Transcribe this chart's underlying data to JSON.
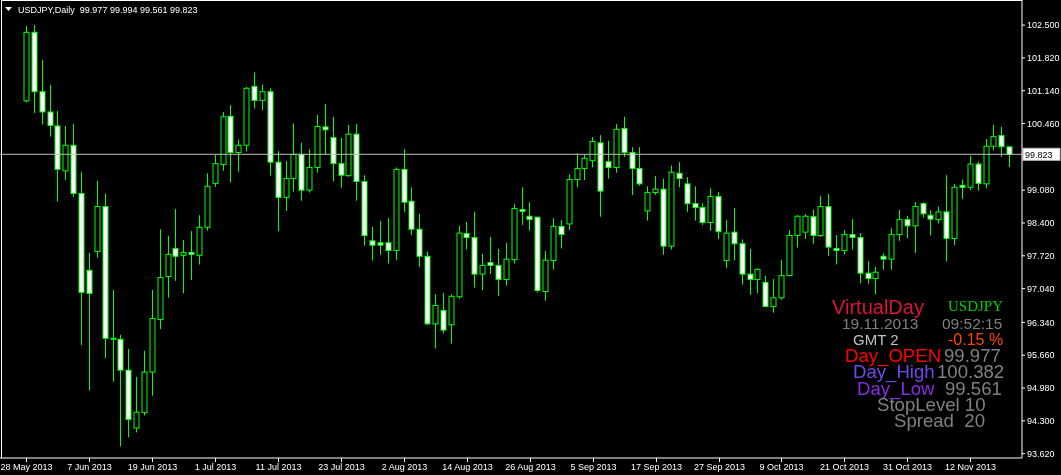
{
  "chart_data": {
    "type": "candlestick",
    "title": "USDJPY,Daily  99.977 99.994 99.561 99.823",
    "categories": [
      "28 May 2013",
      null,
      null,
      null,
      null,
      null,
      null,
      null,
      "7 Jun 2013",
      null,
      null,
      null,
      null,
      null,
      null,
      null,
      "19 Jun 2013",
      null,
      null,
      null,
      null,
      null,
      null,
      null,
      "1 Jul 2013",
      null,
      null,
      null,
      null,
      null,
      null,
      null,
      "11 Jul 2013",
      null,
      null,
      null,
      null,
      null,
      null,
      null,
      "23 Jul 2013",
      null,
      null,
      null,
      null,
      null,
      null,
      null,
      "2 Aug 2013",
      null,
      null,
      null,
      null,
      null,
      null,
      null,
      "14 Aug 2013",
      null,
      null,
      null,
      null,
      null,
      null,
      null,
      "26 Aug 2013",
      null,
      null,
      null,
      null,
      null,
      null,
      null,
      "5 Sep 2013",
      null,
      null,
      null,
      null,
      null,
      null,
      null,
      "17 Sep 2013",
      null,
      null,
      null,
      null,
      null,
      null,
      null,
      "27 Sep 2013",
      null,
      null,
      null,
      null,
      null,
      null,
      null,
      "9 Oct 2013",
      null,
      null,
      null,
      null,
      null,
      null,
      null,
      "21 Oct 2013",
      null,
      null,
      null,
      null,
      null,
      null,
      null,
      "31 Oct 2013",
      null,
      null,
      null,
      null,
      null,
      null,
      null,
      "12 Nov 2013",
      null,
      null,
      null,
      null,
      null
    ],
    "ohlc": [
      [
        100.93,
        102.48,
        100.9,
        102.35
      ],
      [
        102.35,
        102.5,
        100.68,
        101.12
      ],
      [
        101.12,
        101.78,
        100.44,
        100.7
      ],
      [
        100.7,
        101.26,
        100.19,
        100.42
      ],
      [
        100.41,
        100.72,
        98.84,
        99.51
      ],
      [
        99.48,
        100.41,
        99.29,
        100.01
      ],
      [
        100.01,
        100.45,
        98.94,
        99.01
      ],
      [
        99.01,
        99.46,
        95.87,
        96.96
      ],
      [
        97.42,
        97.78,
        94.93,
        96.94
      ],
      [
        97.81,
        99.27,
        97.68,
        98.74
      ],
      [
        98.74,
        99.01,
        95.6,
        96.01
      ],
      [
        96.0,
        97.01,
        95.11,
        96.01
      ],
      [
        95.99,
        96.08,
        93.77,
        95.35
      ],
      [
        95.35,
        95.79,
        93.96,
        94.33
      ],
      [
        94.15,
        95.21,
        94.06,
        94.48
      ],
      [
        94.47,
        95.75,
        94.41,
        95.31
      ],
      [
        95.31,
        97.01,
        94.82,
        96.42
      ],
      [
        96.4,
        98.27,
        96.2,
        97.27
      ],
      [
        97.29,
        98.13,
        96.85,
        97.75
      ],
      [
        97.87,
        98.69,
        97.2,
        97.71
      ],
      [
        97.73,
        98.05,
        96.94,
        97.79
      ],
      [
        97.79,
        98.23,
        97.22,
        97.75
      ],
      [
        97.73,
        98.56,
        97.54,
        98.31
      ],
      [
        98.31,
        99.43,
        98.24,
        99.16
      ],
      [
        99.22,
        99.81,
        99.15,
        99.63
      ],
      [
        99.61,
        100.7,
        99.48,
        100.6
      ],
      [
        100.61,
        100.84,
        99.24,
        99.86
      ],
      [
        99.86,
        100.13,
        99.46,
        100.01
      ],
      [
        100.01,
        101.22,
        99.88,
        101.19
      ],
      [
        101.23,
        101.52,
        100.77,
        100.94
      ],
      [
        100.94,
        101.27,
        100.74,
        101.12
      ],
      [
        101.12,
        101.19,
        99.38,
        99.66
      ],
      [
        99.66,
        99.89,
        98.23,
        98.93
      ],
      [
        98.93,
        99.68,
        98.65,
        99.32
      ],
      [
        99.32,
        100.46,
        99.05,
        99.82
      ],
      [
        99.82,
        100.06,
        98.86,
        99.08
      ],
      [
        99.08,
        99.93,
        99.03,
        99.55
      ],
      [
        99.55,
        100.64,
        99.44,
        100.4
      ],
      [
        100.39,
        100.86,
        99.81,
        100.33
      ],
      [
        100.17,
        100.6,
        99.26,
        99.63
      ],
      [
        99.63,
        100.16,
        99.13,
        99.39
      ],
      [
        99.38,
        100.43,
        99.36,
        100.24
      ],
      [
        100.24,
        100.45,
        98.86,
        99.26
      ],
      [
        99.26,
        99.39,
        97.93,
        98.14
      ],
      [
        98.03,
        98.32,
        97.62,
        97.94
      ],
      [
        97.99,
        98.44,
        97.74,
        97.94
      ],
      [
        97.99,
        98.5,
        97.56,
        97.83
      ],
      [
        97.83,
        99.55,
        97.63,
        99.51
      ],
      [
        99.51,
        99.93,
        98.63,
        98.83
      ],
      [
        98.85,
        99.14,
        98.15,
        98.27
      ],
      [
        98.27,
        98.59,
        97.49,
        97.71
      ],
      [
        97.71,
        97.81,
        96.29,
        96.31
      ],
      [
        96.31,
        96.92,
        95.8,
        96.69
      ],
      [
        96.59,
        96.95,
        96.11,
        96.18
      ],
      [
        96.29,
        96.92,
        95.9,
        96.88
      ],
      [
        96.87,
        98.34,
        96.83,
        98.19
      ],
      [
        98.18,
        98.42,
        97.85,
        98.1
      ],
      [
        98.1,
        98.63,
        97.06,
        97.34
      ],
      [
        97.34,
        97.76,
        97.01,
        97.52
      ],
      [
        97.58,
        98.11,
        97.34,
        97.52
      ],
      [
        97.52,
        97.86,
        96.89,
        97.23
      ],
      [
        97.23,
        97.99,
        97.1,
        97.65
      ],
      [
        97.64,
        98.79,
        97.56,
        98.7
      ],
      [
        98.68,
        99.14,
        98.36,
        98.64
      ],
      [
        98.54,
        98.83,
        98.24,
        98.47
      ],
      [
        98.52,
        98.53,
        96.96,
        97.0
      ],
      [
        96.98,
        97.82,
        96.79,
        97.63
      ],
      [
        97.62,
        98.5,
        97.43,
        98.33
      ],
      [
        98.33,
        98.46,
        97.87,
        98.16
      ],
      [
        98.38,
        99.41,
        98.25,
        99.3
      ],
      [
        99.3,
        99.84,
        99.14,
        99.53
      ],
      [
        99.53,
        99.81,
        99.29,
        99.74
      ],
      [
        99.69,
        100.18,
        99.55,
        100.09
      ],
      [
        100.06,
        100.22,
        98.53,
        99.06
      ],
      [
        99.67,
        100.1,
        99.32,
        99.55
      ],
      [
        99.55,
        100.45,
        99.44,
        100.34
      ],
      [
        100.36,
        100.6,
        99.77,
        99.86
      ],
      [
        99.86,
        99.97,
        98.98,
        99.53
      ],
      [
        99.53,
        99.97,
        99.17,
        99.21
      ],
      [
        98.65,
        99.16,
        98.45,
        99.03
      ],
      [
        99.03,
        99.37,
        98.98,
        99.1
      ],
      [
        99.1,
        99.32,
        97.74,
        97.92
      ],
      [
        97.92,
        99.59,
        97.85,
        99.45
      ],
      [
        99.43,
        99.66,
        99.14,
        99.32
      ],
      [
        99.21,
        99.35,
        98.63,
        98.8
      ],
      [
        98.8,
        99.16,
        98.45,
        98.72
      ],
      [
        98.72,
        98.81,
        98.36,
        98.41
      ],
      [
        98.41,
        99.12,
        98.24,
        98.95
      ],
      [
        98.95,
        99.04,
        98.07,
        98.22
      ],
      [
        97.62,
        98.46,
        97.47,
        98.19
      ],
      [
        98.21,
        98.71,
        97.63,
        97.97
      ],
      [
        97.97,
        98.06,
        97.12,
        97.34
      ],
      [
        97.34,
        97.86,
        96.91,
        97.23
      ],
      [
        97.23,
        97.46,
        96.94,
        97.44
      ],
      [
        97.17,
        97.31,
        96.65,
        96.67
      ],
      [
        96.67,
        97.24,
        96.54,
        96.85
      ],
      [
        96.85,
        97.63,
        96.81,
        97.31
      ],
      [
        97.31,
        98.25,
        97.3,
        98.14
      ],
      [
        98.14,
        98.56,
        97.89,
        98.54
      ],
      [
        98.21,
        98.58,
        98.07,
        98.54
      ],
      [
        98.53,
        98.68,
        97.97,
        98.14
      ],
      [
        98.14,
        98.96,
        98.11,
        98.74
      ],
      [
        98.74,
        99.0,
        97.72,
        97.9
      ],
      [
        97.87,
        98.15,
        97.54,
        97.83
      ],
      [
        97.83,
        98.25,
        97.75,
        98.16
      ],
      [
        98.16,
        98.48,
        97.85,
        98.1
      ],
      [
        98.1,
        98.19,
        97.15,
        97.36
      ],
      [
        97.36,
        97.61,
        97.14,
        97.25
      ],
      [
        97.25,
        97.49,
        96.92,
        97.38
      ],
      [
        97.71,
        97.77,
        97.43,
        97.65
      ],
      [
        97.65,
        98.29,
        97.43,
        98.16
      ],
      [
        98.16,
        98.67,
        98.03,
        98.47
      ],
      [
        98.47,
        98.55,
        98.08,
        98.34
      ],
      [
        98.34,
        98.83,
        97.78,
        98.74
      ],
      [
        98.8,
        98.83,
        98.51,
        98.59
      ],
      [
        98.56,
        98.67,
        98.14,
        98.48
      ],
      [
        98.47,
        98.74,
        98.39,
        98.63
      ],
      [
        98.63,
        99.39,
        97.6,
        98.08
      ],
      [
        98.08,
        99.21,
        97.94,
        99.14
      ],
      [
        99.18,
        99.3,
        98.9,
        99.14
      ],
      [
        99.14,
        99.79,
        99.08,
        99.62
      ],
      [
        99.62,
        99.67,
        99.07,
        99.22
      ],
      [
        99.21,
        100.14,
        99.12,
        99.99
      ],
      [
        99.99,
        100.43,
        99.91,
        100.19
      ],
      [
        100.21,
        100.39,
        99.77,
        99.98
      ],
      [
        99.977,
        99.994,
        99.561,
        99.823
      ]
    ],
    "color": "#00ff00",
    "colors": [
      "#000000",
      "#ffffff",
      "#ffffff",
      "#ffffff",
      "#ffffff",
      "#000000",
      "#ffffff",
      "#ffffff",
      "#ffffff",
      "#000000",
      "#ffffff",
      "#000000",
      "#ffffff",
      "#ffffff",
      "#000000",
      "#000000",
      "#000000",
      "#000000",
      "#000000",
      "#ffffff",
      "#000000",
      "#ffffff",
      "#000000",
      "#000000",
      "#000000",
      "#000000",
      "#ffffff",
      "#000000",
      "#000000",
      "#ffffff",
      "#000000",
      "#ffffff",
      "#ffffff",
      "#000000",
      "#000000",
      "#ffffff",
      "#000000",
      "#000000",
      "#ffffff",
      "#ffffff",
      "#ffffff",
      "#000000",
      "#ffffff",
      "#ffffff",
      "#ffffff",
      "#ffffff",
      "#ffffff",
      "#000000",
      "#ffffff",
      "#ffffff",
      "#ffffff",
      "#ffffff",
      "#000000",
      "#ffffff",
      "#000000",
      "#000000",
      "#ffffff",
      "#ffffff",
      "#000000",
      "#ffffff",
      "#ffffff",
      "#000000",
      "#000000",
      "#ffffff",
      "#ffffff",
      "#ffffff",
      "#000000",
      "#000000",
      "#ffffff",
      "#000000",
      "#000000",
      "#000000",
      "#000000",
      "#ffffff",
      "#ffffff",
      "#000000",
      "#ffffff",
      "#ffffff",
      "#ffffff",
      "#000000",
      "#000000",
      "#ffffff",
      "#000000",
      "#ffffff",
      "#ffffff",
      "#ffffff",
      "#ffffff",
      "#000000",
      "#ffffff",
      "#000000",
      "#ffffff",
      "#ffffff",
      "#ffffff",
      "#000000",
      "#ffffff",
      "#000000",
      "#000000",
      "#000000",
      "#000000",
      "#000000",
      "#ffffff",
      "#000000",
      "#ffffff",
      "#ffffff",
      "#000000",
      "#ffffff",
      "#ffffff",
      "#ffffff",
      "#000000",
      "#ffffff",
      "#000000",
      "#000000",
      "#ffffff",
      "#000000",
      "#ffffff",
      "#ffffff",
      "#000000",
      "#ffffff",
      "#000000",
      "#ffffff",
      "#000000",
      "#ffffff",
      "#000000",
      "#000000",
      "#ffffff",
      "#ffffff"
    ],
    "ylim": [
      93.53,
      103.02
    ],
    "yticks": [
      {
        "value": 93.62,
        "label": "93.620"
      },
      {
        "value": 94.3,
        "label": "94.300"
      },
      {
        "value": 94.98,
        "label": "94.980"
      },
      {
        "value": 95.66,
        "label": "95.660"
      },
      {
        "value": 96.34,
        "label": "96.340"
      },
      {
        "value": 97.04,
        "label": "97.040"
      },
      {
        "value": 97.72,
        "label": "97.720"
      },
      {
        "value": 98.4,
        "label": "98.400"
      },
      {
        "value": 99.08,
        "label": "99.080"
      },
      {
        "value": 100.46,
        "label": "100.460"
      },
      {
        "value": 101.14,
        "label": "101.140"
      },
      {
        "value": 101.82,
        "label": "101.820"
      },
      {
        "value": 102.5,
        "label": "102.500"
      }
    ],
    "ref_lines": [
      {
        "axis": "y",
        "value": 99.823,
        "label": "99.823",
        "color": "#c0c0c0"
      }
    ],
    "annotations": [
      "VirtualDay",
      "USDJPY",
      "19.11.2013",
      "09:52:15",
      "GMT 2",
      "-0.15 %",
      "Day_OPEN",
      "99.977",
      "Day_High",
      "100.382",
      "Day_Low",
      "99.561",
      "StopLevel 10",
      "Spread  20"
    ]
  }
}
